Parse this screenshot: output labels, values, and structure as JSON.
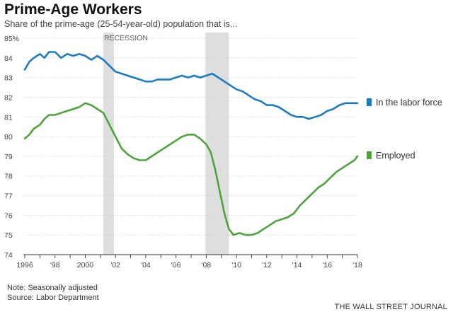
{
  "header": {
    "title": "Prime-Age Workers",
    "subtitle": "Share of the prime-age (25-54-year-old) population that is..."
  },
  "footer": {
    "note": "Note: Seasonally adjusted",
    "source": "Source: Labor Department",
    "credit": "THE WALL STREET JOURNAL"
  },
  "colors": {
    "labor_force": "#1f7bbf",
    "employed": "#4ea33c",
    "recession": "#dedede",
    "grid": "#d0d0d0"
  },
  "chart_data": {
    "type": "line",
    "y_min": 74,
    "y_max": 85,
    "x_min": 1996,
    "x_max": 2018,
    "grid": true,
    "legend_placement": "right",
    "y_ticks": [
      74,
      75,
      76,
      77,
      78,
      79,
      80,
      81,
      82,
      83,
      84,
      85
    ],
    "y_tick_labels": [
      "74",
      "75",
      "76",
      "77",
      "78",
      "79",
      "80",
      "81",
      "82",
      "83",
      "84",
      "85%"
    ],
    "x_ticks": [
      1996,
      1998,
      2000,
      2002,
      2004,
      2006,
      2008,
      2010,
      2012,
      2014,
      2016,
      2018
    ],
    "x_tick_labels": [
      "1996",
      "'98",
      "2000",
      "'02",
      "'04",
      "'06",
      "'08",
      "'10",
      "'12",
      "'14",
      "'16",
      "'18"
    ],
    "recessions": [
      {
        "label": "RECESSION",
        "start": 2001.2,
        "end": 2001.9
      },
      {
        "label": "",
        "start": 2007.95,
        "end": 2009.5
      }
    ],
    "series": [
      {
        "name": "In the labor force",
        "x": [
          1996.0,
          1996.3,
          1996.6,
          1997.0,
          1997.3,
          1997.6,
          1998.0,
          1998.4,
          1998.8,
          1999.2,
          1999.6,
          2000.0,
          2000.4,
          2000.8,
          2001.2,
          2001.6,
          2002.0,
          2002.4,
          2002.8,
          2003.2,
          2003.6,
          2004.0,
          2004.4,
          2004.8,
          2005.2,
          2005.6,
          2006.0,
          2006.4,
          2006.8,
          2007.2,
          2007.6,
          2008.0,
          2008.4,
          2008.8,
          2009.2,
          2009.6,
          2010.0,
          2010.4,
          2010.8,
          2011.2,
          2011.6,
          2012.0,
          2012.4,
          2012.8,
          2013.2,
          2013.6,
          2014.0,
          2014.4,
          2014.8,
          2015.2,
          2015.6,
          2016.0,
          2016.4,
          2016.8,
          2017.2,
          2017.6,
          2018.0
        ],
        "values": [
          83.4,
          83.8,
          84.0,
          84.2,
          84.0,
          84.3,
          84.3,
          84.0,
          84.2,
          84.1,
          84.2,
          84.1,
          83.9,
          84.1,
          83.9,
          83.6,
          83.3,
          83.2,
          83.1,
          83.0,
          82.9,
          82.8,
          82.8,
          82.9,
          82.9,
          82.9,
          83.0,
          83.1,
          83.0,
          83.1,
          83.0,
          83.1,
          83.2,
          83.0,
          82.8,
          82.6,
          82.4,
          82.3,
          82.1,
          81.9,
          81.8,
          81.6,
          81.6,
          81.5,
          81.3,
          81.1,
          81.0,
          81.0,
          80.9,
          81.0,
          81.1,
          81.3,
          81.4,
          81.6,
          81.7,
          81.7,
          81.7
        ]
      },
      {
        "name": "Employed",
        "x": [
          1996.0,
          1996.3,
          1996.6,
          1997.0,
          1997.3,
          1997.6,
          1998.0,
          1998.4,
          1998.8,
          1999.2,
          1999.6,
          2000.0,
          2000.4,
          2000.8,
          2001.2,
          2001.6,
          2002.0,
          2002.4,
          2002.8,
          2003.2,
          2003.6,
          2004.0,
          2004.4,
          2004.8,
          2005.2,
          2005.6,
          2006.0,
          2006.4,
          2006.8,
          2007.2,
          2007.6,
          2008.0,
          2008.3,
          2008.6,
          2008.9,
          2009.2,
          2009.5,
          2009.8,
          2010.2,
          2010.6,
          2011.0,
          2011.4,
          2011.8,
          2012.2,
          2012.6,
          2013.0,
          2013.4,
          2013.8,
          2014.2,
          2014.6,
          2015.0,
          2015.4,
          2015.8,
          2016.2,
          2016.6,
          2017.0,
          2017.4,
          2017.8,
          2018.0
        ],
        "values": [
          79.9,
          80.1,
          80.4,
          80.6,
          80.9,
          81.1,
          81.1,
          81.2,
          81.3,
          81.4,
          81.5,
          81.7,
          81.6,
          81.4,
          81.2,
          80.6,
          80.0,
          79.4,
          79.1,
          78.9,
          78.8,
          78.8,
          79.0,
          79.2,
          79.4,
          79.6,
          79.8,
          80.0,
          80.1,
          80.1,
          79.9,
          79.6,
          79.2,
          78.3,
          77.2,
          76.1,
          75.3,
          75.0,
          75.1,
          75.0,
          75.0,
          75.1,
          75.3,
          75.5,
          75.7,
          75.8,
          75.9,
          76.1,
          76.5,
          76.8,
          77.1,
          77.4,
          77.6,
          77.9,
          78.2,
          78.4,
          78.6,
          78.8,
          79.0
        ]
      }
    ]
  }
}
